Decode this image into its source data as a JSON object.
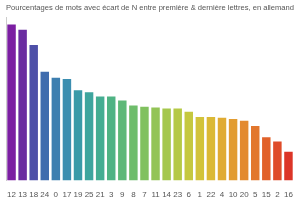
{
  "chart_data": {
    "type": "bar",
    "title": "Pourcentages de mots avec écart de N entre première & dernière lettres, en allemand",
    "categories": [
      "12",
      "13",
      "18",
      "24",
      "0",
      "17",
      "19",
      "25",
      "21",
      "3",
      "9",
      "8",
      "7",
      "11",
      "14",
      "23",
      "6",
      "1",
      "22",
      "4",
      "10",
      "20",
      "5",
      "15",
      "2",
      "16"
    ],
    "values": [
      6.7,
      6.48,
      5.82,
      4.67,
      4.41,
      4.36,
      3.88,
      3.79,
      3.61,
      3.61,
      3.44,
      3.22,
      3.17,
      3.13,
      3.09,
      3.09,
      2.95,
      2.73,
      2.73,
      2.69,
      2.64,
      2.56,
      2.34,
      1.85,
      1.67,
      1.23
    ],
    "colors": [
      "#7b1fa2",
      "#6a2ca0",
      "#4e50a8",
      "#3f6cae",
      "#3d7fb0",
      "#3b8eb0",
      "#3a9aa8",
      "#3ea59e",
      "#44ad92",
      "#4fb384",
      "#5db878",
      "#6ebd6b",
      "#80c15f",
      "#93c456",
      "#a5c74d",
      "#b5c945",
      "#c5c83f",
      "#d2c33a",
      "#dbb936",
      "#e0ab33",
      "#e29c31",
      "#e38a2f",
      "#e2772d",
      "#e1622b",
      "#df4c29",
      "#dc3527"
    ],
    "ylim": [
      0,
      7
    ],
    "grid": false,
    "tick_labels": "x"
  }
}
